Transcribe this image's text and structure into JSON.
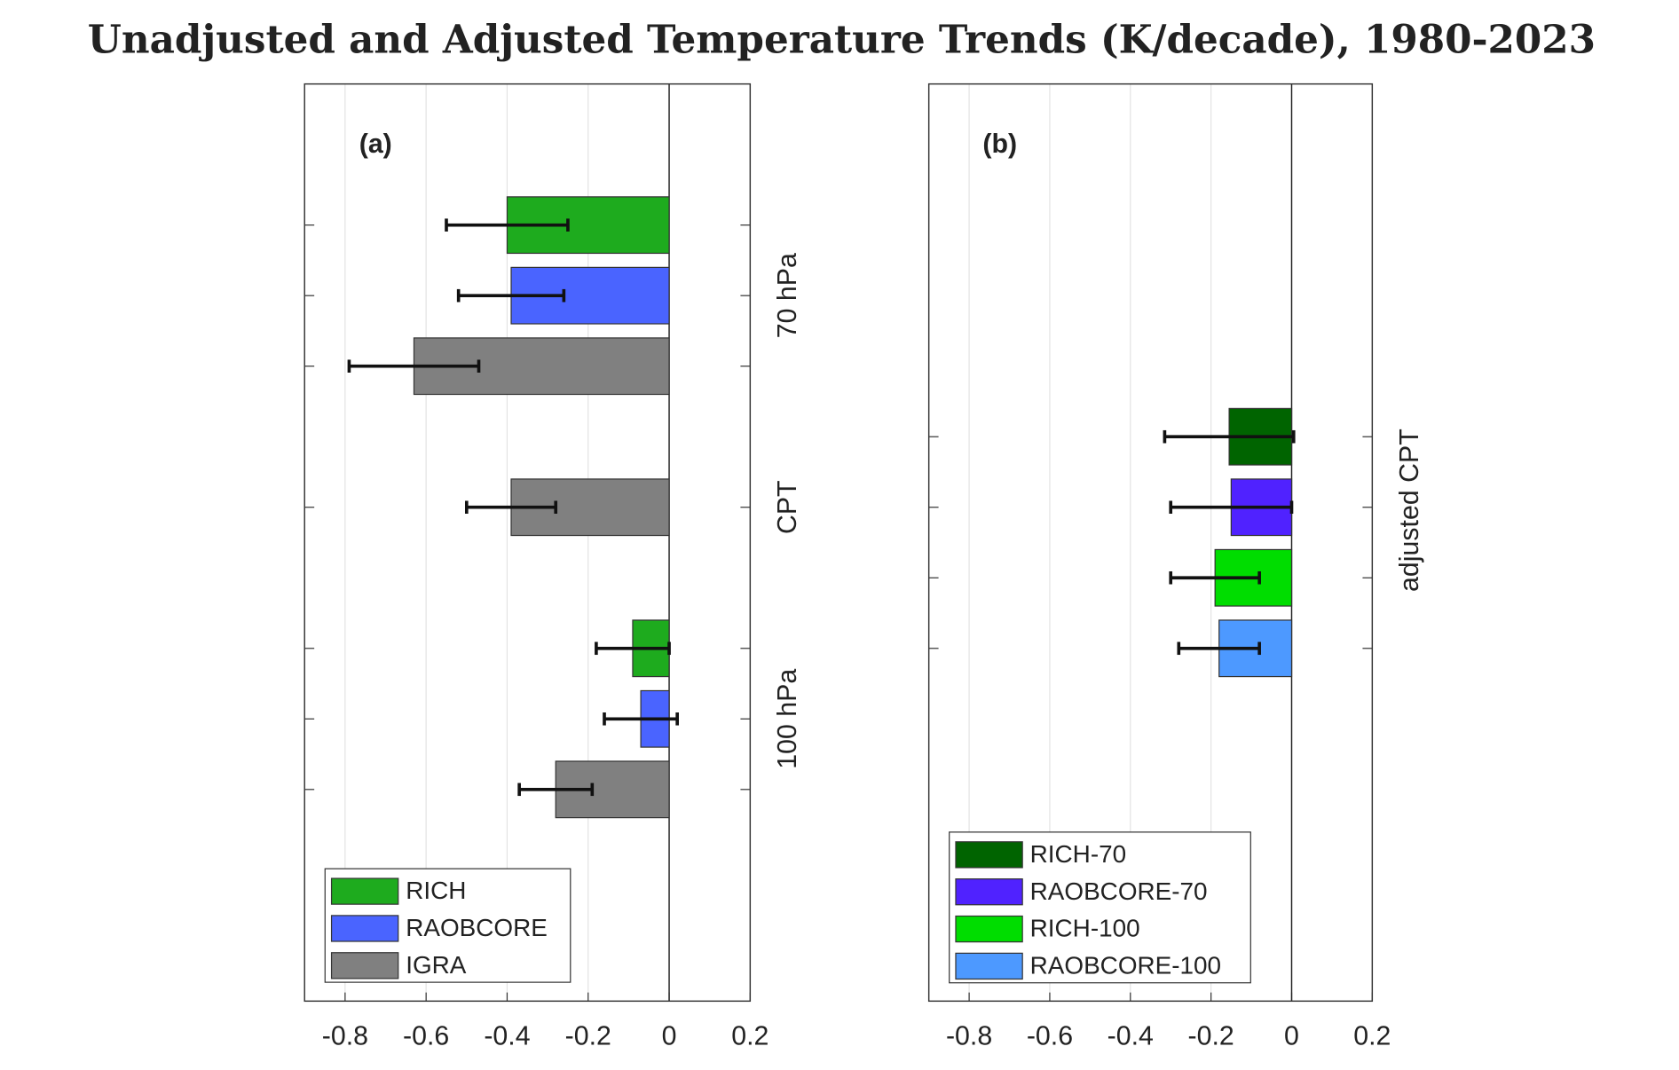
{
  "title": "Unadjusted and Adjusted Temperature Trends (K/decade), 1980-2023",
  "chart_data": [
    {
      "type": "barh_error",
      "panel_label": "(a)",
      "categories": [
        "70 hPa",
        "CPT",
        "100 hPa"
      ],
      "series": [
        {
          "name": "RICH",
          "color": "#1eab1e",
          "values": [
            -0.4,
            null,
            -0.09
          ],
          "errors": [
            0.15,
            null,
            0.09
          ]
        },
        {
          "name": "RAOBCORE",
          "color": "#4a64ff",
          "values": [
            -0.39,
            null,
            -0.07
          ],
          "errors": [
            0.13,
            null,
            0.09
          ]
        },
        {
          "name": "IGRA",
          "color": "#808080",
          "values": [
            -0.63,
            -0.39,
            -0.28
          ],
          "errors": [
            0.16,
            0.11,
            0.09
          ]
        }
      ],
      "xlim": [
        -0.9,
        0.2
      ],
      "xticks": [
        -0.8,
        -0.6,
        -0.4,
        -0.2,
        0,
        0.2
      ],
      "grid": true,
      "legend": "lower left"
    },
    {
      "type": "barh_error",
      "panel_label": "(b)",
      "categories": [
        "adjusted CPT"
      ],
      "series": [
        {
          "name": "RICH-70",
          "color": "#006400",
          "values": [
            -0.155
          ],
          "errors": [
            0.16
          ]
        },
        {
          "name": "RAOBCORE-70",
          "color": "#5022ff",
          "values": [
            -0.15
          ],
          "errors": [
            0.15
          ]
        },
        {
          "name": "RICH-100",
          "color": "#00dd00",
          "values": [
            -0.19
          ],
          "errors": [
            0.11
          ]
        },
        {
          "name": "RAOBCORE-100",
          "color": "#4d99ff",
          "values": [
            -0.18
          ],
          "errors": [
            0.1
          ]
        }
      ],
      "xlim": [
        -0.9,
        0.2
      ],
      "xticks": [
        -0.8,
        -0.6,
        -0.4,
        -0.2,
        0,
        0.2
      ],
      "grid": true,
      "legend": "lower left"
    }
  ]
}
